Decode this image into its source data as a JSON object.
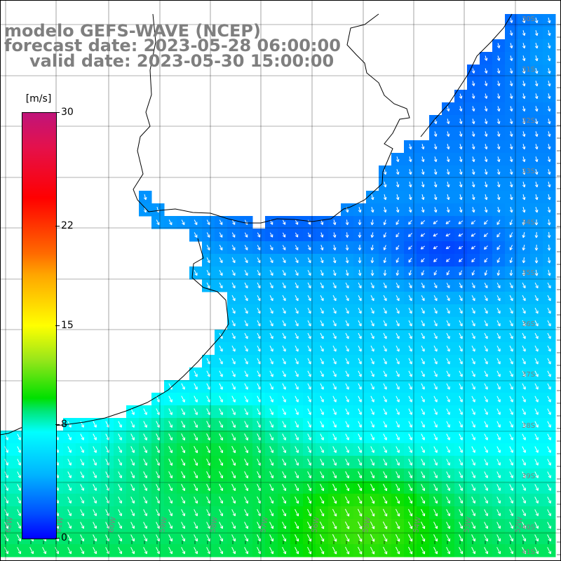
{
  "title": {
    "line1": "modelo GEFS-WAVE (NCEP)",
    "line2": "forecast date: 2023-05-28 06:00:00",
    "line3": "valid date: 2023-05-30 15:00:00"
  },
  "colorbar": {
    "unit": "[m/s]",
    "ticks": [
      "30",
      "22",
      "15",
      "8",
      "0"
    ],
    "tick_values": [
      30,
      22,
      15,
      8,
      0
    ],
    "min": 0,
    "max": 30
  },
  "lat_labels": [
    "30S",
    "31S",
    "32S",
    "33S",
    "34S",
    "35S",
    "36S",
    "37S",
    "38S",
    "39S",
    "40S",
    "41S"
  ],
  "lon_labels": [
    "62W",
    "61W",
    "60W",
    "59W",
    "58W",
    "57W",
    "56W",
    "55W",
    "54W",
    "53W",
    "52W"
  ],
  "colors": {
    "land": "#ffffff",
    "coast": "#000000",
    "grid": "#000000",
    "arrows": "#ffffff",
    "label": "#808080"
  }
}
